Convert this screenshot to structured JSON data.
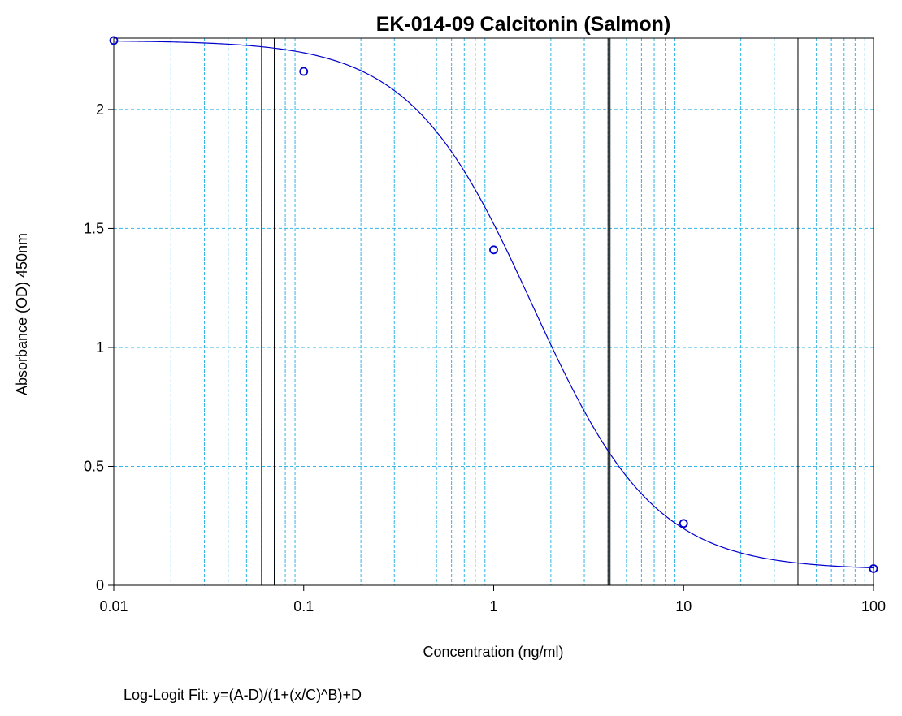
{
  "chart_data": {
    "type": "scatter",
    "title": "EK-014-09 Calcitonin (Salmon)",
    "xlabel": "Concentration (ng/ml)",
    "ylabel": "Absorbance (OD) 450nm",
    "x_scale": "log",
    "xlim": [
      0.01,
      100
    ],
    "ylim": [
      0,
      2.3
    ],
    "x_ticks": [
      0.01,
      0.1,
      1,
      10,
      100
    ],
    "x_tick_labels": [
      "0.01",
      "0.1",
      "1",
      "10",
      "100"
    ],
    "y_ticks": [
      0,
      0.5,
      1,
      1.5,
      2
    ],
    "y_tick_labels": [
      "0",
      "0.5",
      "1",
      "1.5",
      "2"
    ],
    "grid": true,
    "series": [
      {
        "values_x": [
          0.01,
          0.1,
          1,
          10,
          100
        ],
        "values_y": [
          2.29,
          2.16,
          1.41,
          0.26,
          0.07
        ],
        "marker": "circle",
        "color": "#0000cc"
      }
    ],
    "fit": {
      "model": "log-logit",
      "A": 2.29,
      "B": 1.35,
      "C": 1.6,
      "D": 0.065,
      "color": "#0000cc"
    },
    "vertical_lines_x": [
      0.06,
      0.07,
      4,
      4.1,
      40
    ],
    "annotation": "Log-Logit Fit: y=(A-D)/(1+(x/C)^B)+D"
  },
  "colors": {
    "grid": "#33b5e5",
    "series": "#0000cc",
    "axis": "#000000"
  }
}
